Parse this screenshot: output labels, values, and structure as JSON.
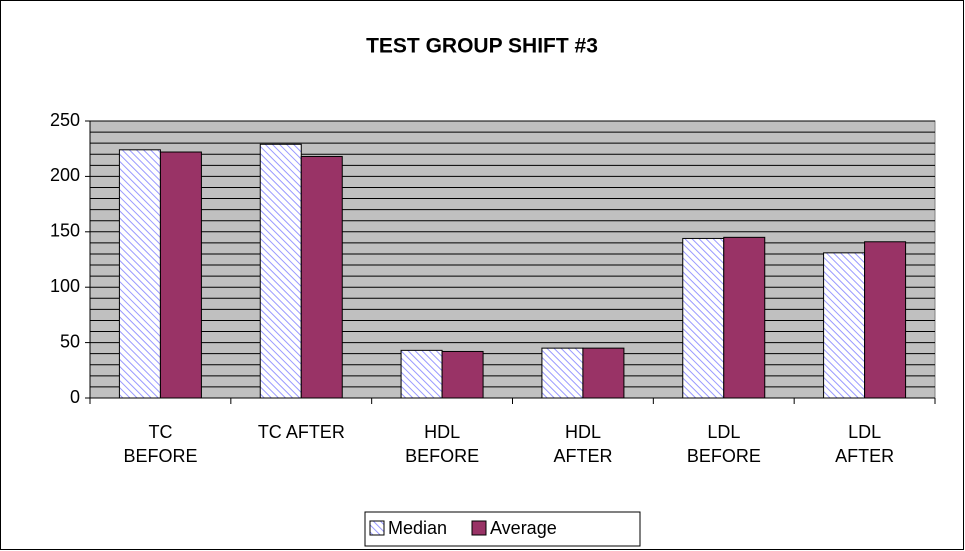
{
  "chart_data": {
    "type": "bar",
    "title": "TEST GROUP SHIFT #3",
    "categories": [
      "TC\nBEFORE",
      "TC AFTER",
      "HDL\nBEFORE",
      "HDL\nAFTER",
      "LDL\nBEFORE",
      "LDL\nAFTER"
    ],
    "series": [
      {
        "name": "Median",
        "color": "#9999ff",
        "pattern": "hatch",
        "values": [
          224,
          229,
          43,
          45,
          144,
          131
        ]
      },
      {
        "name": "Average",
        "color": "#993366",
        "values": [
          222,
          218,
          42,
          45,
          145,
          141
        ]
      }
    ],
    "ylim": [
      0,
      250
    ],
    "yticks": [
      0,
      50,
      100,
      150,
      200,
      250
    ],
    "ygrid": [
      0,
      10,
      20,
      30,
      40,
      50,
      60,
      70,
      80,
      90,
      100,
      110,
      120,
      130,
      140,
      150,
      160,
      170,
      180,
      190,
      200,
      210,
      220,
      230,
      240,
      250
    ],
    "plot_background": "#c0c0c0",
    "grid": true,
    "legend": "bottom"
  }
}
